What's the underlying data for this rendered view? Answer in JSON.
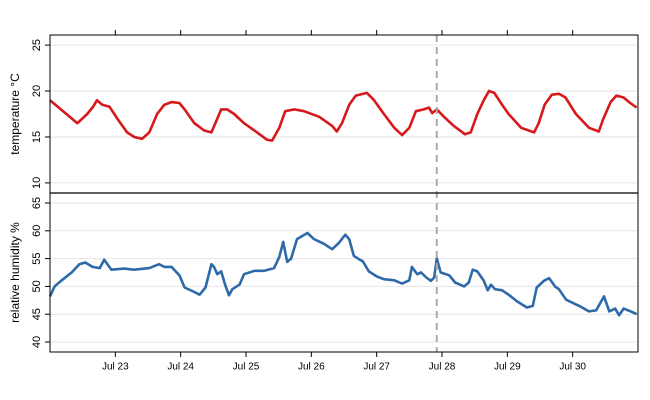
{
  "chart_data": [
    {
      "type": "line",
      "y_label": "temperature °C",
      "ylim": [
        8.9,
        26.1
      ],
      "yticks": [
        10,
        15,
        20,
        25
      ],
      "grid": true,
      "series": [
        {
          "name": "temperature",
          "color": "#d7191c",
          "x": [
            22.0,
            22.42,
            22.57,
            22.66,
            22.72,
            22.8,
            22.91,
            23.03,
            23.18,
            23.29,
            23.41,
            23.52,
            23.64,
            23.75,
            23.86,
            23.98,
            24.06,
            24.21,
            24.36,
            24.47,
            24.56,
            24.62,
            24.71,
            24.82,
            24.97,
            25.17,
            25.32,
            25.4,
            25.51,
            25.6,
            25.74,
            25.89,
            26.12,
            26.32,
            26.39,
            26.47,
            26.58,
            26.68,
            26.85,
            26.96,
            27.11,
            27.27,
            27.39,
            27.5,
            27.6,
            27.72,
            27.8,
            27.85,
            27.92,
            28.03,
            28.18,
            28.35,
            28.44,
            28.54,
            28.64,
            28.72,
            28.8,
            28.92,
            29.02,
            29.21,
            29.41,
            29.48,
            29.57,
            29.68,
            29.79,
            29.89,
            30.05,
            30.25,
            30.4,
            30.47,
            30.58,
            30.67,
            30.78,
            30.88,
            30.98
          ],
          "values": [
            19.0,
            16.5,
            17.5,
            18.3,
            19.0,
            18.5,
            18.3,
            17.0,
            15.5,
            15.0,
            14.8,
            15.5,
            17.5,
            18.5,
            18.8,
            18.7,
            18.0,
            16.5,
            15.7,
            15.5,
            17.0,
            18.0,
            18.0,
            17.5,
            16.5,
            15.5,
            14.7,
            14.6,
            16.0,
            17.8,
            18.0,
            17.8,
            17.2,
            16.2,
            15.6,
            16.5,
            18.5,
            19.5,
            19.8,
            19.0,
            17.5,
            16.0,
            15.2,
            16.0,
            17.8,
            18.0,
            18.2,
            17.6,
            18.0,
            17.2,
            16.2,
            15.3,
            15.5,
            17.5,
            19.0,
            20.0,
            19.8,
            18.5,
            17.5,
            16.0,
            15.5,
            16.5,
            18.5,
            19.6,
            19.7,
            19.3,
            17.5,
            16.0,
            15.6,
            17.0,
            18.8,
            19.5,
            19.3,
            18.7,
            18.2
          ]
        }
      ]
    },
    {
      "type": "line",
      "y_label": "relative humidity %",
      "ylim": [
        38.2,
        66.8
      ],
      "yticks": [
        40,
        45,
        50,
        55,
        60,
        65
      ],
      "grid": true,
      "xlim": [
        22,
        31
      ],
      "xticks": [
        {
          "value": 23,
          "label": "Jul 23"
        },
        {
          "value": 24,
          "label": "Jul 24"
        },
        {
          "value": 25,
          "label": "Jul 25"
        },
        {
          "value": 26,
          "label": "Jul 26"
        },
        {
          "value": 27,
          "label": "Jul 27"
        },
        {
          "value": 28,
          "label": "Jul 28"
        },
        {
          "value": 29,
          "label": "Jul 29"
        },
        {
          "value": 30,
          "label": "Jul 30"
        }
      ],
      "vline": 27.92,
      "series": [
        {
          "name": "relative humidity",
          "color": "#2e6aa8",
          "x": [
            22.0,
            22.07,
            22.17,
            22.33,
            22.45,
            22.54,
            22.65,
            22.76,
            22.83,
            22.94,
            23.14,
            23.29,
            23.52,
            23.67,
            23.75,
            23.86,
            23.98,
            24.06,
            24.21,
            24.29,
            24.38,
            24.47,
            24.51,
            24.56,
            24.62,
            24.68,
            24.74,
            24.79,
            24.9,
            24.97,
            25.13,
            25.28,
            25.43,
            25.51,
            25.57,
            25.63,
            25.69,
            25.78,
            25.94,
            26.04,
            26.2,
            26.32,
            26.42,
            26.52,
            26.58,
            26.65,
            26.73,
            26.79,
            26.88,
            27.0,
            27.11,
            27.27,
            27.39,
            27.5,
            27.54,
            27.62,
            27.68,
            27.76,
            27.83,
            27.88,
            27.92,
            27.98,
            28.11,
            28.2,
            28.34,
            28.41,
            28.47,
            28.54,
            28.64,
            28.7,
            28.75,
            28.81,
            28.92,
            29.02,
            29.15,
            29.3,
            29.39,
            29.45,
            29.56,
            29.64,
            29.73,
            29.79,
            29.9,
            30.1,
            30.25,
            30.36,
            30.48,
            30.56,
            30.65,
            30.71,
            30.78,
            30.89,
            30.98
          ],
          "values": [
            48.2,
            50,
            51,
            52.5,
            54,
            54.3,
            53.5,
            53.3,
            54.8,
            53,
            53.2,
            53,
            53.3,
            54,
            53.5,
            53.5,
            52,
            49.8,
            49,
            48.5,
            49.8,
            54,
            53.5,
            52.2,
            52.7,
            50.3,
            48.4,
            49.5,
            50.3,
            52.2,
            52.8,
            52.8,
            53.3,
            55.3,
            58,
            54.4,
            55,
            58.5,
            59.6,
            58.5,
            57.6,
            56.7,
            57.8,
            59.3,
            58.5,
            55.5,
            54.9,
            54.5,
            52.7,
            51.8,
            51.3,
            51.1,
            50.5,
            51.1,
            53.5,
            52.2,
            52.5,
            51.6,
            51,
            51.6,
            55,
            52.5,
            52,
            50.7,
            50,
            50.7,
            53,
            52.7,
            51,
            49.3,
            50.3,
            49.5,
            49.3,
            48.5,
            47.3,
            46.2,
            46.5,
            49.8,
            51,
            51.5,
            50,
            49.5,
            47.6,
            46.5,
            45.5,
            45.7,
            48.2,
            45.5,
            46,
            44.8,
            46,
            45.5,
            45
          ]
        }
      ]
    }
  ]
}
